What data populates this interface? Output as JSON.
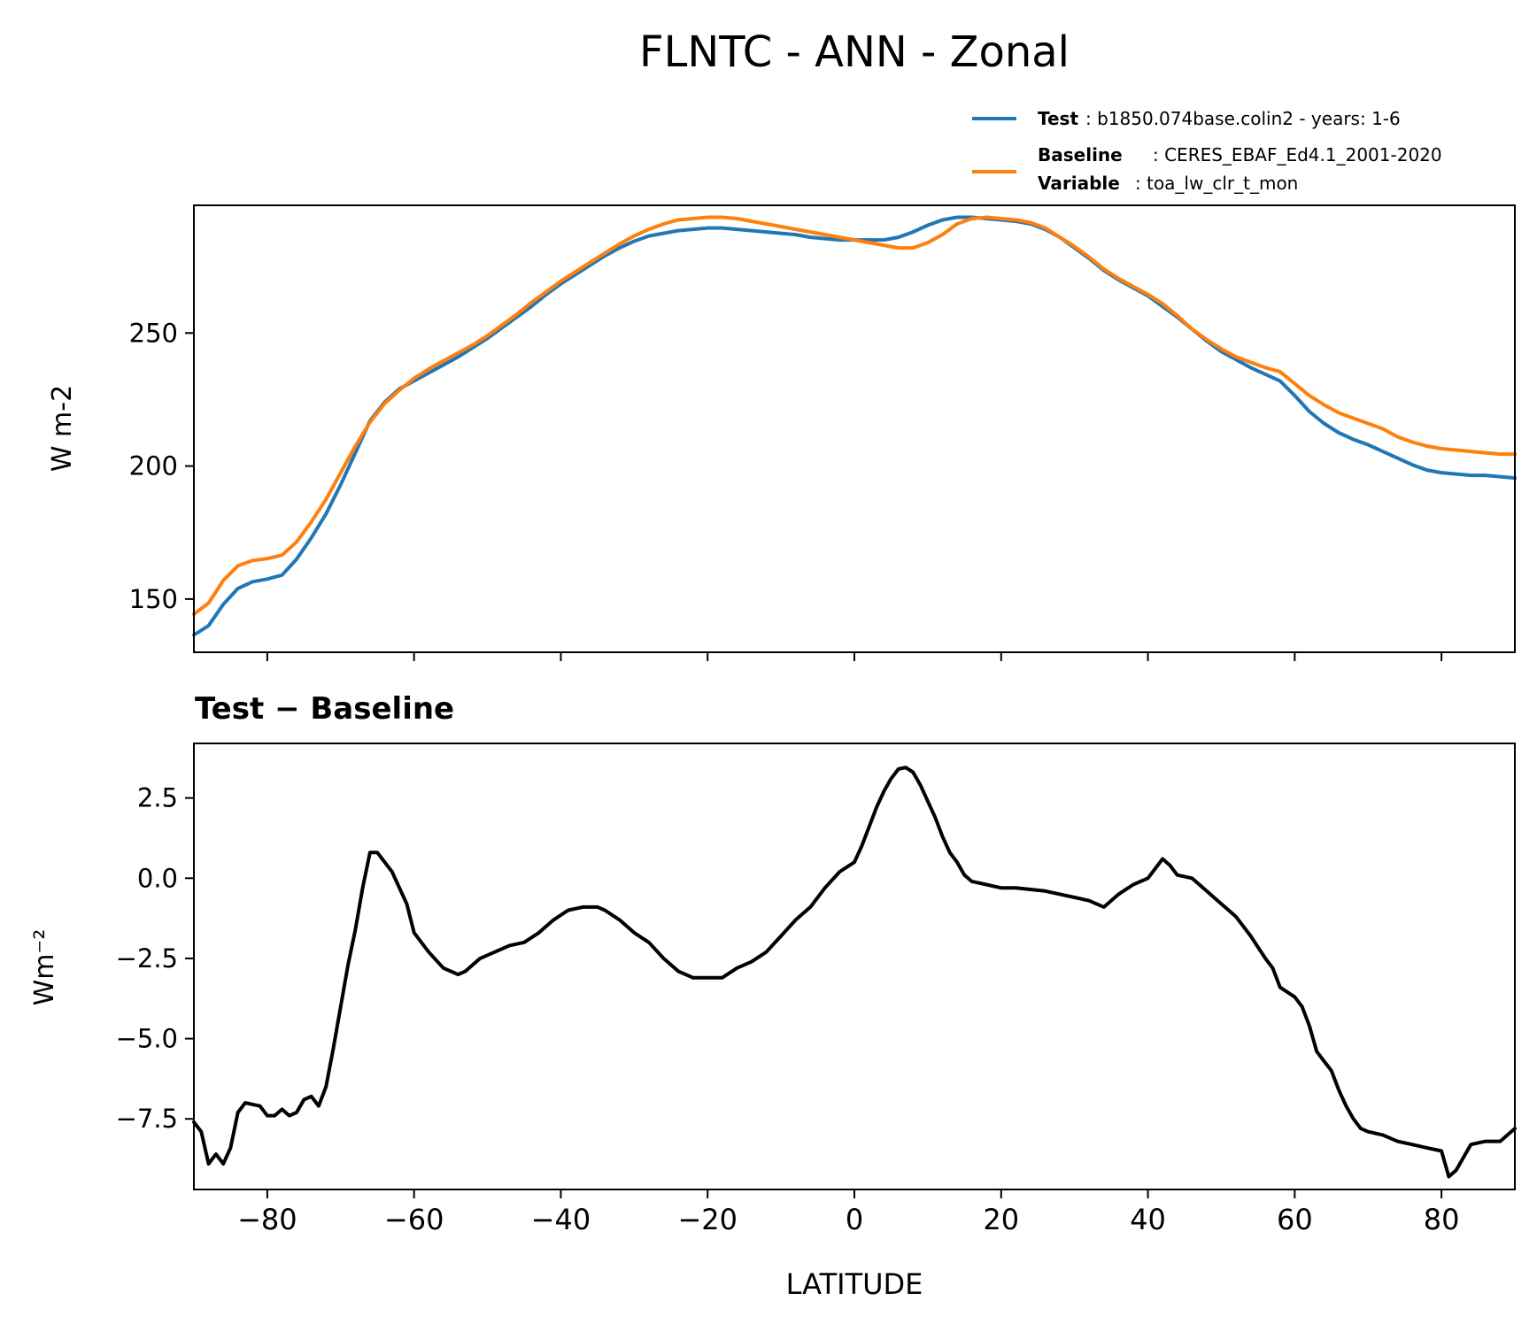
{
  "figure": {
    "title": "FLNTC - ANN - Zonal"
  },
  "legend": {
    "test_key": "Test",
    "test_value": ": b1850.074base.colin2 - years: 1-6",
    "baseline_key": "Baseline",
    "baseline_value": ": CERES_EBAF_Ed4.1_2001-2020",
    "variable_key": "Variable",
    "variable_value": ": toa_lw_clr_t_mon",
    "placement": "upper-right, above top panel"
  },
  "chart_data": [
    {
      "type": "line",
      "panel": "top",
      "ylabel": "W m-2",
      "xlim": [
        -90,
        90
      ],
      "ylim": [
        130,
        298
      ],
      "xticks": [
        -80,
        -60,
        -40,
        -20,
        0,
        20,
        40,
        60,
        80
      ],
      "yticks": [
        150,
        200,
        250
      ],
      "ytick_labels": [
        "150",
        "200",
        "250"
      ],
      "grid": false,
      "x": [
        -90,
        -88,
        -86,
        -84,
        -82,
        -80,
        -78,
        -76,
        -74,
        -72,
        -70,
        -68,
        -66,
        -64,
        -62,
        -60,
        -58,
        -56,
        -54,
        -52,
        -50,
        -48,
        -46,
        -44,
        -42,
        -40,
        -38,
        -36,
        -34,
        -32,
        -30,
        -28,
        -26,
        -24,
        -22,
        -20,
        -18,
        -16,
        -14,
        -12,
        -10,
        -8,
        -6,
        -4,
        -2,
        0,
        2,
        4,
        6,
        8,
        10,
        12,
        14,
        16,
        18,
        20,
        22,
        24,
        26,
        28,
        30,
        32,
        34,
        36,
        38,
        40,
        42,
        44,
        46,
        48,
        50,
        52,
        54,
        56,
        58,
        60,
        62,
        64,
        66,
        68,
        70,
        72,
        74,
        76,
        78,
        80,
        82,
        84,
        86,
        88,
        90
      ],
      "series": [
        {
          "name": "Test",
          "color": "#1f77b4",
          "values": [
            136.5,
            140,
            148,
            154,
            156.5,
            157.5,
            159,
            165,
            173,
            182,
            193,
            205,
            217,
            224,
            229,
            232,
            235,
            238,
            241,
            244.5,
            248,
            252,
            256,
            260,
            264.5,
            268.5,
            272,
            275.5,
            279,
            282,
            284.5,
            286.5,
            287.5,
            288.5,
            289,
            289.5,
            289.5,
            289,
            288.5,
            288,
            287.5,
            287,
            286,
            285.5,
            285,
            285,
            285,
            285,
            286,
            288,
            290.5,
            292.5,
            293.5,
            293.5,
            293,
            292.5,
            292,
            291,
            289,
            286,
            282,
            278,
            273.5,
            270,
            267,
            264,
            260,
            256,
            251.5,
            247,
            243,
            240,
            237,
            234.5,
            232,
            226.5,
            220.5,
            216,
            212.5,
            210,
            208,
            205.5,
            203,
            200.5,
            198.5,
            197.5,
            197,
            196.5,
            196.5,
            196,
            195.5
          ]
        },
        {
          "name": "Baseline",
          "color": "#ff7f0e",
          "values": [
            144.3,
            148.5,
            157,
            162.5,
            164.5,
            165.2,
            166.5,
            171.5,
            179,
            187.5,
            197.5,
            207.5,
            216.5,
            223.5,
            228.5,
            233,
            236.5,
            239.5,
            242.5,
            245.5,
            249,
            253,
            257,
            261.5,
            265.5,
            269.5,
            273,
            276.5,
            280,
            283.5,
            286.5,
            289,
            291,
            292.5,
            293,
            293.5,
            293.5,
            293,
            292,
            291,
            290,
            289,
            288,
            287,
            286,
            285,
            284,
            283,
            282,
            282,
            284,
            287,
            291,
            293,
            293.5,
            293,
            292.5,
            291.5,
            289.5,
            286,
            282.5,
            278.5,
            274,
            270.5,
            267.5,
            264.5,
            261,
            256.5,
            251.5,
            247.5,
            244,
            241,
            239,
            237,
            235.5,
            231,
            226.5,
            223,
            220,
            218,
            216,
            214,
            211,
            209,
            207.5,
            206.5,
            206,
            205.5,
            205,
            204.5,
            204.5
          ]
        }
      ]
    },
    {
      "type": "line",
      "panel": "bottom",
      "title": "Test − Baseline",
      "xlabel": "LATITUDE",
      "ylabel": "Wm⁻²",
      "xlim": [
        -90,
        90
      ],
      "ylim": [
        -9.7,
        4.2
      ],
      "xticks": [
        -80,
        -60,
        -40,
        -20,
        0,
        20,
        40,
        60,
        80
      ],
      "xtick_labels": [
        "−80",
        "−60",
        "−40",
        "−20",
        "0",
        "20",
        "40",
        "60",
        "80"
      ],
      "yticks": [
        2.5,
        0.0,
        -2.5,
        -5.0,
        -7.5
      ],
      "ytick_labels": [
        "2.5",
        "0.0",
        "−2.5",
        "−5.0",
        "−7.5"
      ],
      "grid": false,
      "series": [
        {
          "name": "Test − Baseline",
          "color": "#000000",
          "x": [
            -90,
            -89,
            -88,
            -87,
            -86,
            -85,
            -84,
            -83,
            -82,
            -81,
            -80,
            -79,
            -78,
            -77,
            -76,
            -75,
            -74,
            -73,
            -72,
            -71,
            -70,
            -69,
            -68,
            -67,
            -66,
            -65,
            -64,
            -63,
            -62,
            -61,
            -60,
            -58,
            -56,
            -54,
            -53,
            -51,
            -49,
            -47,
            -45,
            -43,
            -41,
            -39,
            -37,
            -35,
            -34,
            -32,
            -30,
            -28,
            -26,
            -24,
            -22,
            -20,
            -18,
            -16,
            -14,
            -12,
            -10,
            -8,
            -6,
            -4,
            -2,
            0,
            1,
            2,
            3,
            4,
            5,
            6,
            7,
            8,
            9,
            10,
            11,
            12,
            13,
            14,
            15,
            16,
            17,
            18,
            19,
            20,
            22,
            24,
            26,
            28,
            30,
            32,
            34,
            36,
            38,
            40,
            41,
            42,
            43,
            44,
            46,
            48,
            50,
            52,
            54,
            56,
            57,
            58,
            60,
            61,
            62,
            63,
            64,
            65,
            66,
            67,
            68,
            69,
            70,
            72,
            74,
            76,
            78,
            80,
            81,
            82,
            83,
            84,
            86,
            88,
            90
          ],
          "values": [
            -7.6,
            -7.9,
            -8.9,
            -8.6,
            -8.9,
            -8.4,
            -7.3,
            -7.0,
            -7.05,
            -7.1,
            -7.4,
            -7.4,
            -7.2,
            -7.4,
            -7.3,
            -6.9,
            -6.8,
            -7.1,
            -6.5,
            -5.3,
            -4.0,
            -2.7,
            -1.6,
            -0.3,
            0.8,
            0.8,
            0.5,
            0.2,
            -0.3,
            -0.8,
            -1.7,
            -2.3,
            -2.8,
            -3.0,
            -2.9,
            -2.5,
            -2.3,
            -2.1,
            -2.0,
            -1.7,
            -1.3,
            -1.0,
            -0.9,
            -0.9,
            -1.0,
            -1.3,
            -1.7,
            -2.0,
            -2.5,
            -2.9,
            -3.1,
            -3.1,
            -3.1,
            -2.8,
            -2.6,
            -2.3,
            -1.8,
            -1.3,
            -0.9,
            -0.3,
            0.2,
            0.5,
            1.0,
            1.6,
            2.2,
            2.7,
            3.1,
            3.4,
            3.45,
            3.3,
            2.9,
            2.4,
            1.9,
            1.3,
            0.8,
            0.5,
            0.1,
            -0.1,
            -0.15,
            -0.2,
            -0.25,
            -0.3,
            -0.3,
            -0.35,
            -0.4,
            -0.5,
            -0.6,
            -0.7,
            -0.9,
            -0.5,
            -0.2,
            0.0,
            0.3,
            0.6,
            0.4,
            0.1,
            0.0,
            -0.4,
            -0.8,
            -1.2,
            -1.8,
            -2.5,
            -2.8,
            -3.4,
            -3.7,
            -4.0,
            -4.6,
            -5.4,
            -5.7,
            -6.0,
            -6.6,
            -7.1,
            -7.5,
            -7.8,
            -7.9,
            -8.0,
            -8.2,
            -8.3,
            -8.4,
            -8.5,
            -9.3,
            -9.1,
            -8.7,
            -8.3,
            -8.2,
            -8.2,
            -7.8
          ]
        }
      ]
    }
  ]
}
